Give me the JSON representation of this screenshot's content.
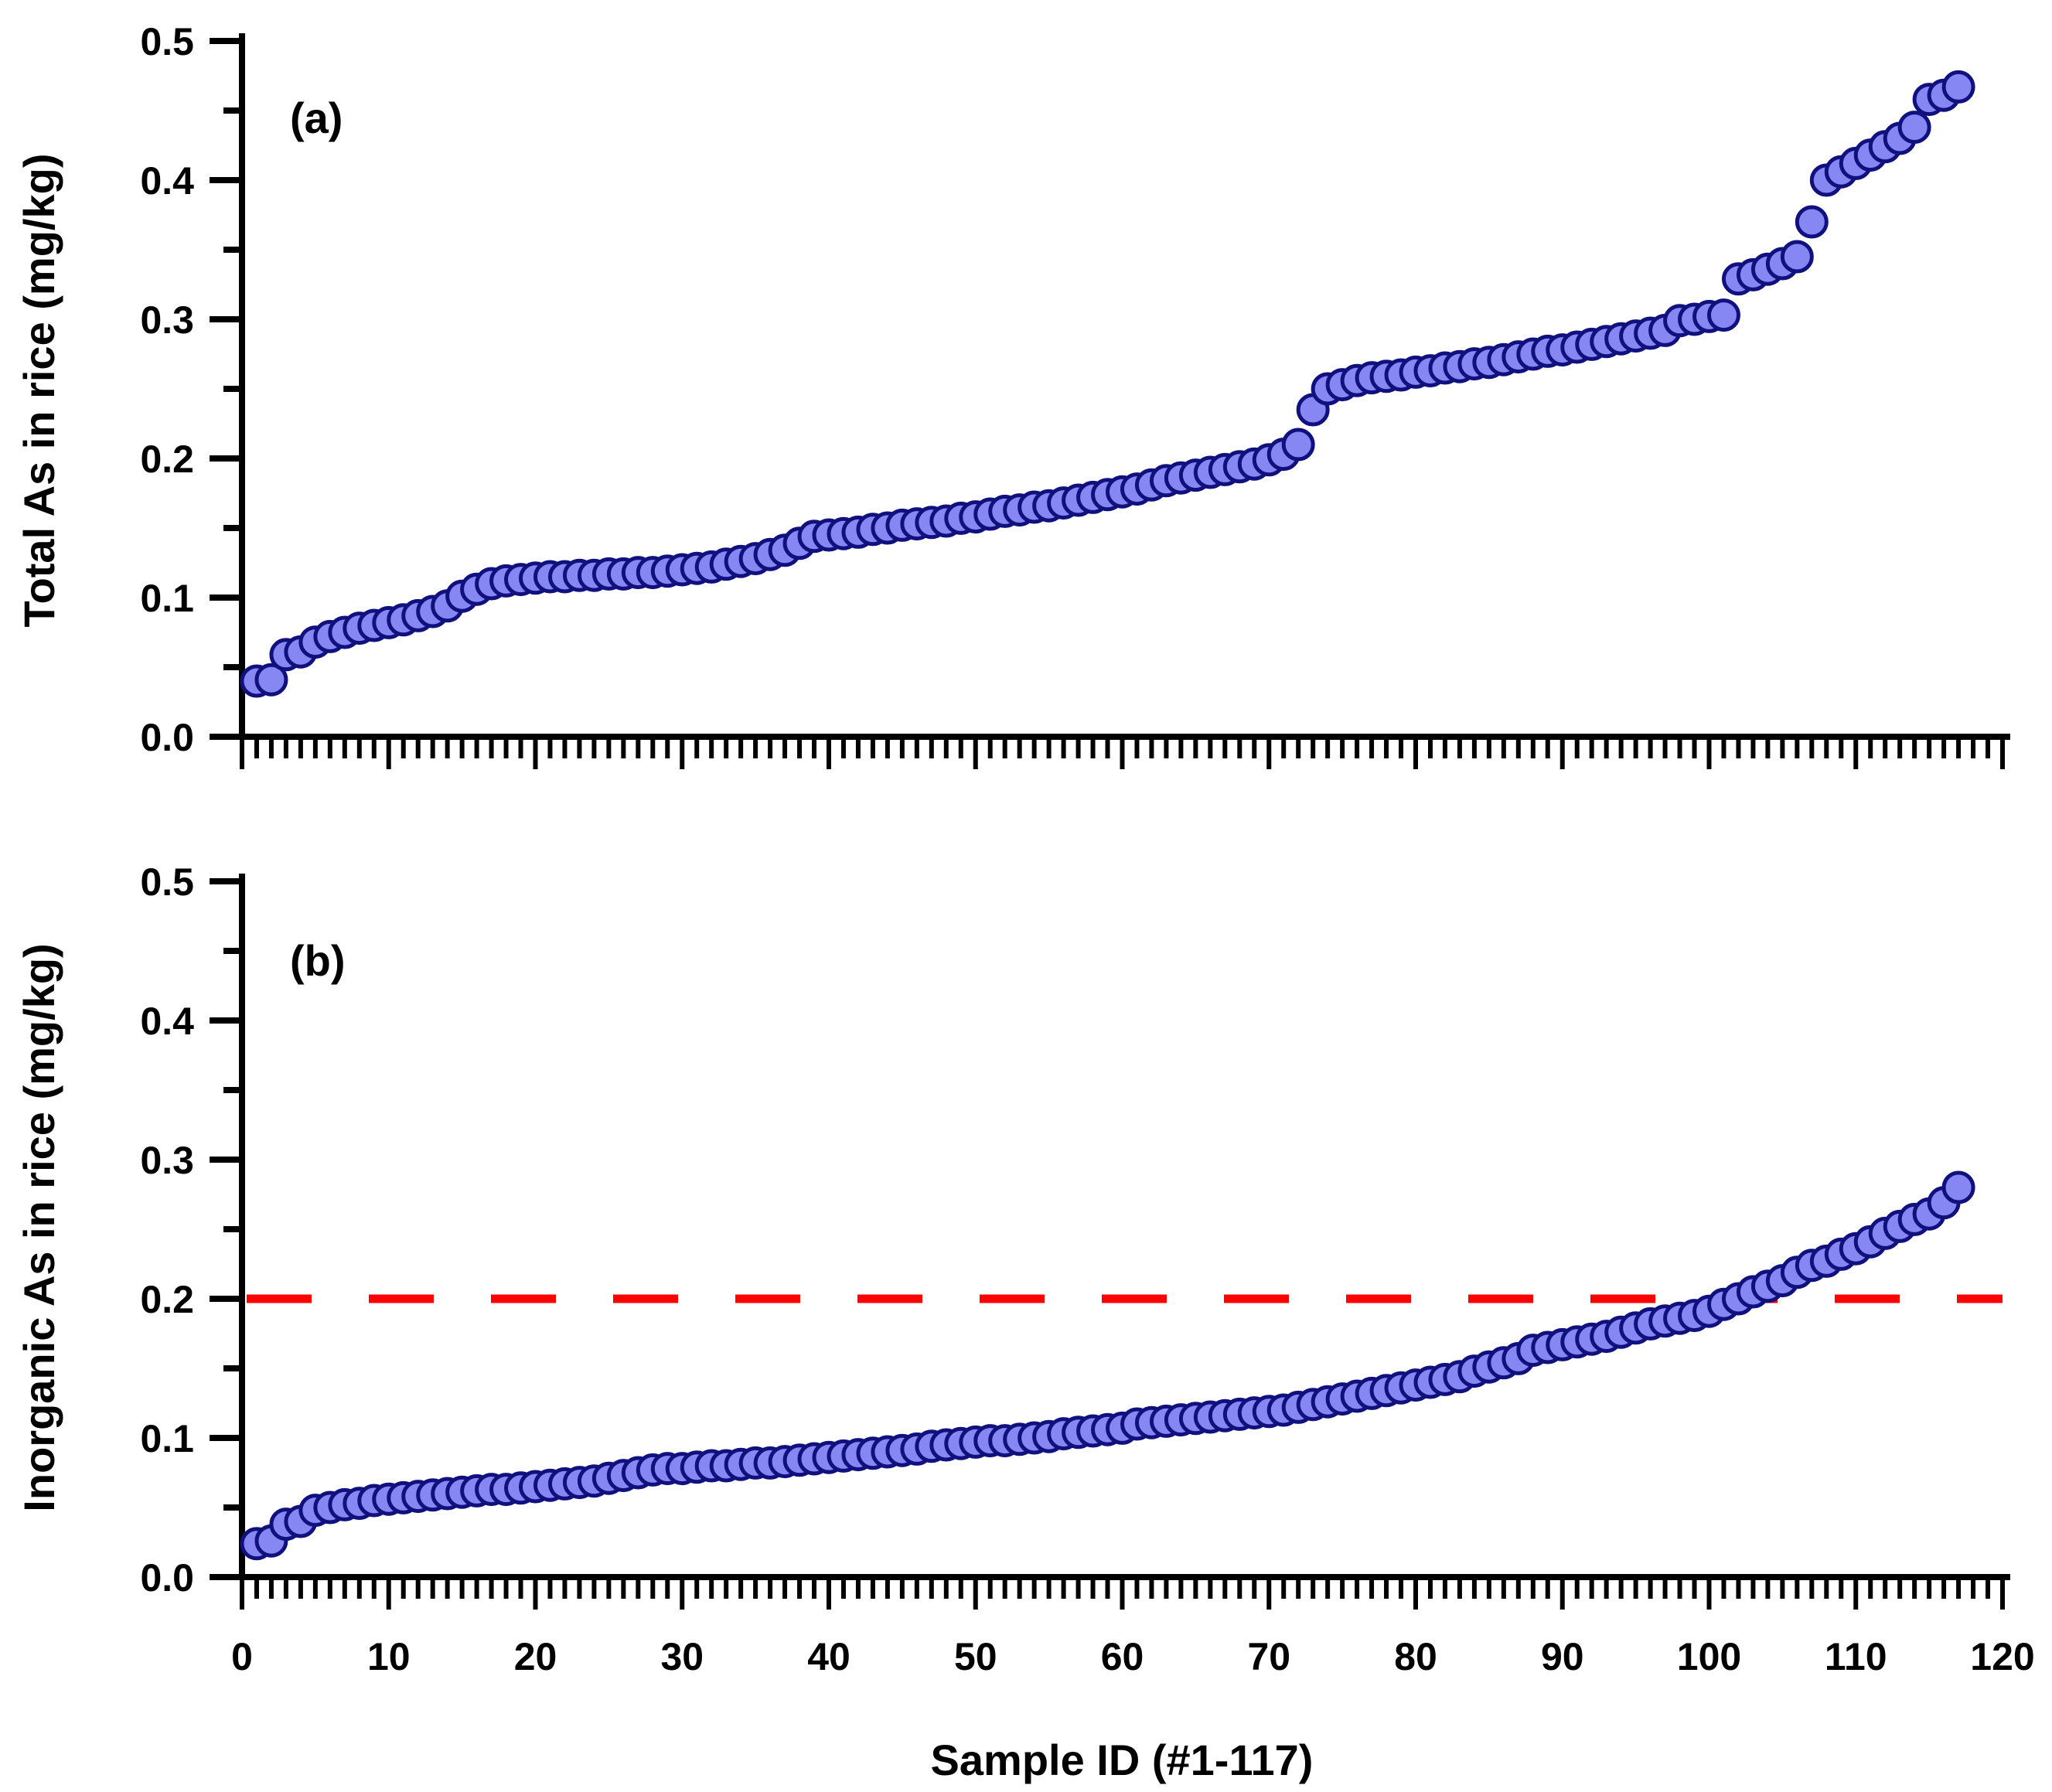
{
  "figure": {
    "xlabel": "Sample ID (#1-117)",
    "xlim": [
      0,
      120
    ],
    "xticks": [
      0,
      10,
      20,
      30,
      40,
      50,
      60,
      70,
      80,
      90,
      100,
      110,
      120
    ],
    "n_samples": 117,
    "background_color": "#FFFFFF",
    "axis_color": "#000000",
    "marker": {
      "fill_color": "#8787F3",
      "edge_color": "#10107E"
    }
  },
  "chart_data": [
    {
      "type": "scatter",
      "panel_label": "(a)",
      "ylabel": "Total As in rice (mg/kg)",
      "ylim": [
        0.0,
        0.5
      ],
      "yticks": [
        "0.0",
        "0.1",
        "0.2",
        "0.3",
        "0.4",
        "0.5"
      ],
      "x_meaning": "sample rank 1-117, sorted ascending",
      "grid": "off",
      "values": [
        0.04,
        0.041,
        0.059,
        0.061,
        0.068,
        0.072,
        0.075,
        0.078,
        0.08,
        0.082,
        0.084,
        0.087,
        0.09,
        0.094,
        0.101,
        0.106,
        0.11,
        0.112,
        0.113,
        0.114,
        0.115,
        0.115,
        0.116,
        0.116,
        0.117,
        0.117,
        0.118,
        0.118,
        0.119,
        0.12,
        0.121,
        0.122,
        0.124,
        0.126,
        0.128,
        0.131,
        0.134,
        0.139,
        0.144,
        0.145,
        0.146,
        0.147,
        0.149,
        0.15,
        0.152,
        0.153,
        0.154,
        0.155,
        0.157,
        0.158,
        0.16,
        0.162,
        0.163,
        0.165,
        0.166,
        0.168,
        0.17,
        0.172,
        0.174,
        0.176,
        0.178,
        0.181,
        0.184,
        0.186,
        0.188,
        0.19,
        0.192,
        0.194,
        0.196,
        0.199,
        0.203,
        0.21,
        0.235,
        0.25,
        0.253,
        0.256,
        0.258,
        0.259,
        0.26,
        0.262,
        0.263,
        0.265,
        0.266,
        0.268,
        0.269,
        0.271,
        0.273,
        0.275,
        0.277,
        0.278,
        0.28,
        0.282,
        0.284,
        0.286,
        0.288,
        0.29,
        0.292,
        0.299,
        0.3,
        0.302,
        0.303,
        0.329,
        0.332,
        0.336,
        0.34,
        0.345,
        0.37,
        0.4,
        0.406,
        0.412,
        0.418,
        0.424,
        0.43,
        0.438,
        0.458,
        0.461,
        0.467
      ]
    },
    {
      "type": "scatter",
      "panel_label": "(b)",
      "ylabel": "Inorganic As in rice (mg/kg)",
      "ylim": [
        0.0,
        0.5
      ],
      "yticks": [
        "0.0",
        "0.1",
        "0.2",
        "0.3",
        "0.4",
        "0.5"
      ],
      "x_meaning": "sample rank 1-117, sorted ascending",
      "grid": "off",
      "reference_line": {
        "value": 0.2,
        "color": "#FF0000",
        "style": "dashed"
      },
      "values": [
        0.024,
        0.026,
        0.038,
        0.04,
        0.048,
        0.05,
        0.052,
        0.053,
        0.055,
        0.056,
        0.057,
        0.058,
        0.059,
        0.06,
        0.061,
        0.062,
        0.063,
        0.063,
        0.064,
        0.065,
        0.066,
        0.067,
        0.068,
        0.069,
        0.071,
        0.073,
        0.075,
        0.077,
        0.078,
        0.078,
        0.079,
        0.08,
        0.08,
        0.081,
        0.082,
        0.082,
        0.083,
        0.084,
        0.085,
        0.086,
        0.087,
        0.088,
        0.089,
        0.09,
        0.091,
        0.092,
        0.094,
        0.095,
        0.096,
        0.097,
        0.098,
        0.098,
        0.099,
        0.1,
        0.101,
        0.103,
        0.104,
        0.105,
        0.106,
        0.107,
        0.11,
        0.111,
        0.112,
        0.113,
        0.114,
        0.115,
        0.116,
        0.117,
        0.118,
        0.119,
        0.12,
        0.122,
        0.124,
        0.126,
        0.128,
        0.13,
        0.132,
        0.134,
        0.136,
        0.138,
        0.14,
        0.142,
        0.144,
        0.148,
        0.151,
        0.154,
        0.157,
        0.163,
        0.165,
        0.167,
        0.169,
        0.171,
        0.173,
        0.176,
        0.179,
        0.182,
        0.184,
        0.186,
        0.188,
        0.191,
        0.196,
        0.2,
        0.205,
        0.209,
        0.213,
        0.219,
        0.224,
        0.227,
        0.232,
        0.236,
        0.241,
        0.247,
        0.252,
        0.257,
        0.261,
        0.269,
        0.28
      ]
    }
  ]
}
